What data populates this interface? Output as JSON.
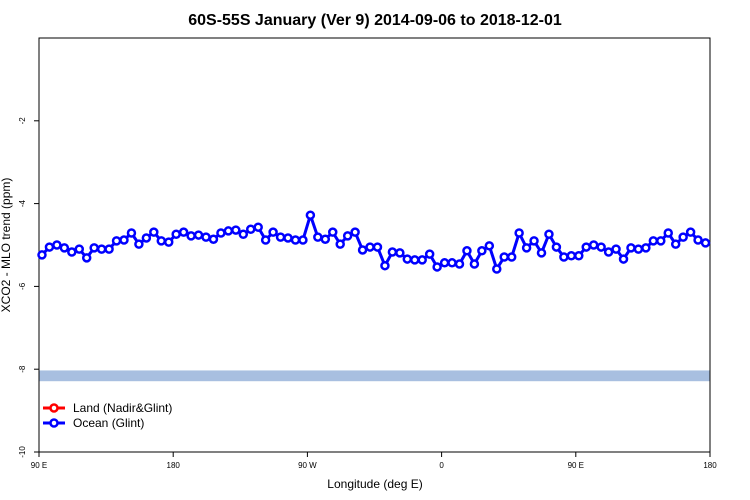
{
  "chart_data": {
    "type": "line",
    "title": "60S-55S January (Ver 9)   2014-09-06 to 2018-12-01",
    "x_label": "Longitude (deg E)",
    "y_label": "XCO2 - MLO trend (ppm)",
    "xlim": [
      90,
      540
    ],
    "ylim": [
      -10,
      0
    ],
    "xticks": [
      {
        "value": 90,
        "label": "90 E"
      },
      180,
      {
        "value": 270,
        "label": "90 W"
      },
      {
        "value": 360,
        "label": "0"
      },
      {
        "value": 450,
        "label": "90 E"
      },
      {
        "value": 540,
        "label": "180"
      }
    ],
    "yticks": [
      -10,
      -8,
      -6,
      -4,
      -2
    ],
    "band": {
      "ylim": [
        -8.29,
        -8.03
      ],
      "color": "#a8bfe0"
    },
    "legend": "bottom-left",
    "x": [
      92,
      97,
      102,
      107,
      112,
      117,
      122,
      127,
      132,
      137,
      142,
      147,
      152,
      157,
      162,
      167,
      172,
      177,
      182,
      187,
      192,
      197,
      202,
      207,
      212,
      217,
      222,
      227,
      232,
      237,
      242,
      247,
      252,
      257,
      262,
      267,
      272,
      277,
      282,
      287,
      292,
      297,
      302,
      307,
      312,
      317,
      322,
      327,
      332,
      337,
      342,
      347,
      352,
      357,
      362,
      367,
      372,
      377,
      382,
      387,
      392,
      397,
      402,
      407,
      412,
      417,
      422,
      427,
      432,
      437,
      442,
      447,
      452,
      457,
      462,
      467,
      472,
      477,
      482,
      487,
      492,
      497,
      502,
      507,
      512,
      517,
      522,
      527,
      532,
      537
    ],
    "series": [
      {
        "name": "Land (Nadir&Glint)",
        "color": "#ff0000",
        "values": [
          null,
          null,
          null,
          null,
          null,
          null,
          null,
          null,
          null,
          null,
          null,
          null,
          null,
          null,
          null,
          null,
          null,
          null,
          null,
          null,
          null,
          null,
          null,
          null,
          null,
          null,
          null,
          null,
          null,
          null,
          null,
          null,
          null,
          null,
          null,
          null,
          null,
          null,
          null,
          null,
          null,
          null,
          null,
          null,
          null,
          null,
          null,
          null,
          null,
          null,
          null,
          null,
          null,
          null,
          null,
          null,
          null,
          null,
          null,
          null,
          null,
          null,
          null,
          null,
          null,
          null,
          null,
          null,
          null,
          null,
          null,
          null,
          null,
          null,
          null,
          null,
          null,
          null,
          null,
          null,
          null,
          null,
          null,
          null,
          null,
          null,
          null,
          null,
          null,
          null
        ]
      },
      {
        "name": "Ocean (Glint)",
        "color": "#0000ff",
        "values": [
          -5.24,
          -5.05,
          -5.0,
          -5.07,
          -5.17,
          -5.1,
          -5.31,
          -5.07,
          -5.1,
          -5.1,
          -4.9,
          -4.88,
          -4.71,
          -4.98,
          -4.83,
          -4.69,
          -4.9,
          -4.93,
          -4.74,
          -4.69,
          -4.78,
          -4.76,
          -4.81,
          -4.86,
          -4.71,
          -4.66,
          -4.64,
          -4.74,
          -4.62,
          -4.57,
          -4.88,
          -4.69,
          -4.81,
          -4.83,
          -4.88,
          -4.88,
          -4.28,
          -4.81,
          -4.86,
          -4.69,
          -4.98,
          -4.78,
          -4.69,
          -5.12,
          -5.05,
          -5.05,
          -5.5,
          -5.17,
          -5.19,
          -5.34,
          -5.36,
          -5.36,
          -5.22,
          -5.53,
          -5.43,
          -5.43,
          -5.46,
          -5.14,
          -5.46,
          -5.14,
          -5.02,
          -5.58,
          -5.29,
          -5.29,
          -4.71,
          -5.07,
          -4.9,
          -5.19,
          -4.74,
          -5.05,
          -5.29,
          -5.26,
          -5.26,
          -5.05,
          -5.0,
          -5.05,
          -5.17,
          -5.1,
          -5.34,
          -5.07,
          -5.1,
          -5.07,
          -4.9,
          -4.9,
          -4.71,
          -4.98,
          -4.81,
          -4.69,
          -4.88,
          -4.95
        ]
      }
    ]
  }
}
